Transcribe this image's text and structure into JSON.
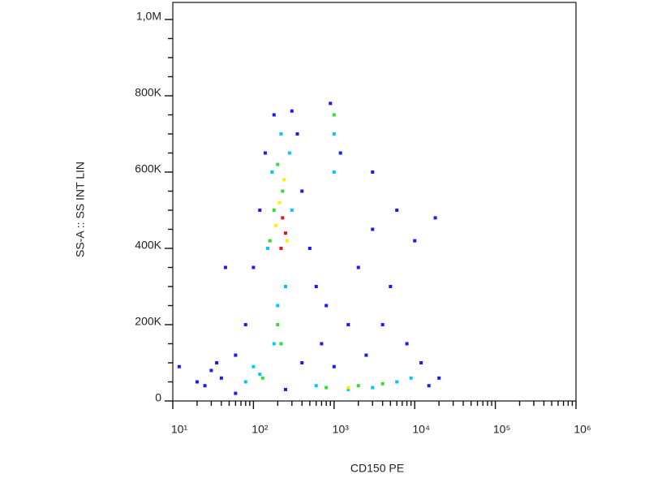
{
  "chart_data": {
    "type": "scatter",
    "xlabel": "CD150 PE",
    "ylabel": "SS-A :: SS INT LIN",
    "xscale": "log",
    "xlim": [
      10,
      1000000
    ],
    "ylim": [
      0,
      1000000
    ],
    "xticks": [
      {
        "value": 10,
        "label": "10¹"
      },
      {
        "value": 100,
        "label": "10²"
      },
      {
        "value": 1000,
        "label": "10³"
      },
      {
        "value": 10000,
        "label": "10⁴"
      },
      {
        "value": 100000,
        "label": "10⁵"
      },
      {
        "value": 1000000,
        "label": "10⁶"
      }
    ],
    "xminorticks": [
      20,
      30,
      40,
      50,
      60,
      70,
      80,
      90,
      200,
      300,
      400,
      500,
      600,
      700,
      800,
      900,
      2000,
      3000,
      4000,
      5000,
      6000,
      7000,
      8000,
      9000,
      20000,
      30000,
      40000,
      50000,
      60000,
      70000,
      80000,
      90000,
      200000,
      300000,
      400000,
      500000,
      600000,
      700000,
      800000,
      900000
    ],
    "yticks": [
      0,
      {
        "value": 200000,
        "label": "200K"
      },
      {
        "value": 400000,
        "label": "400K"
      },
      {
        "value": 600000,
        "label": "600K"
      },
      {
        "value": 800000,
        "label": "800K"
      },
      {
        "value": 1000000,
        "label": "1,0M"
      }
    ],
    "yminorticks": [
      50000,
      100000,
      150000,
      250000,
      300000,
      350000,
      450000,
      500000,
      550000,
      650000,
      700000,
      750000,
      850000,
      900000,
      950000
    ],
    "series": [
      {
        "color": "#1a1aff",
        "x": [
          30,
          40,
          25,
          60,
          80,
          100,
          120,
          140,
          180,
          300,
          350,
          400,
          500,
          600,
          800,
          1500,
          2000,
          3000,
          5000,
          8000,
          12000,
          20000,
          15000,
          3000,
          6000,
          10000,
          1200,
          900,
          700,
          400,
          2500,
          4000,
          60,
          35,
          20,
          1000,
          18000,
          250,
          12,
          45
        ],
        "y": [
          80000,
          60000,
          40000,
          120000,
          200000,
          350000,
          500000,
          650000,
          750000,
          760000,
          700000,
          550000,
          400000,
          300000,
          250000,
          200000,
          350000,
          450000,
          300000,
          150000,
          100000,
          60000,
          40000,
          600000,
          500000,
          420000,
          650000,
          780000,
          150000,
          100000,
          120000,
          200000,
          20000,
          100000,
          50000,
          90000,
          480000,
          30000,
          90000,
          350000
        ]
      },
      {
        "color": "#00c8ff",
        "x": [
          150,
          170,
          220,
          280,
          200,
          180,
          120,
          80,
          600,
          1500,
          3000,
          6000,
          1000,
          1000,
          250,
          300,
          100,
          9000
        ],
        "y": [
          400000,
          600000,
          700000,
          650000,
          250000,
          150000,
          70000,
          50000,
          40000,
          30000,
          35000,
          50000,
          700000,
          600000,
          300000,
          500000,
          90000,
          60000
        ]
      },
      {
        "color": "#33dd33",
        "x": [
          180,
          200,
          230,
          200,
          220,
          130,
          800,
          2000,
          4000,
          1000,
          160
        ],
        "y": [
          500000,
          620000,
          550000,
          200000,
          150000,
          60000,
          35000,
          40000,
          45000,
          750000,
          420000
        ]
      },
      {
        "color": "#ffee00",
        "x": [
          210,
          190,
          240,
          260,
          1500
        ],
        "y": [
          520000,
          460000,
          580000,
          420000,
          35000
        ]
      },
      {
        "color": "#ee1111",
        "x": [
          230,
          250,
          220
        ],
        "y": [
          480000,
          440000,
          400000
        ]
      }
    ]
  }
}
